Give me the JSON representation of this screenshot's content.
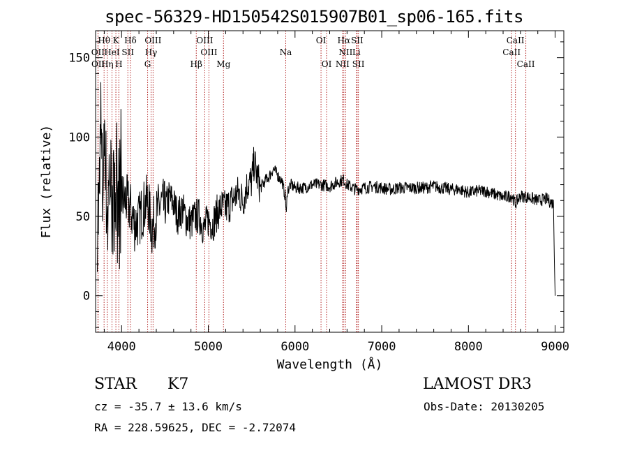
{
  "header": {
    "title": "spec-56329-HD150542S015907B01_sp06-165.fits"
  },
  "info": {
    "object_class": "STAR",
    "subclass": "K7",
    "survey": "LAMOST DR3",
    "cz_line": "cz = -35.7 ± 13.6 km/s",
    "obs_date_line": "Obs-Date: 20130205",
    "radec_line": "RA = 228.59625, DEC =  -2.72074"
  },
  "colors": {
    "spectrum": "#000000",
    "line_markers": "#b22222",
    "axes": "#000000",
    "background": "#ffffff"
  },
  "chart_data": {
    "type": "line",
    "title": "spec-56329-HD150542S015907B01_sp06-165.fits",
    "xlabel": "Wavelength (Å)",
    "ylabel": "Flux (relative)",
    "xlim": [
      3700,
      9100
    ],
    "ylim": [
      -23,
      167
    ],
    "xticks": [
      4000,
      5000,
      6000,
      7000,
      8000,
      9000
    ],
    "xtick_labels": [
      "4000",
      "5000",
      "6000",
      "7000",
      "8000",
      "9000"
    ],
    "yticks": [
      0,
      50,
      100,
      150
    ],
    "ytick_labels": [
      "0",
      "50",
      "100",
      "150"
    ],
    "spectrum_range": [
      3720,
      9000
    ],
    "series": [
      {
        "name": "flux",
        "x": [
          3720,
          3740,
          3760,
          3780,
          3800,
          3820,
          3840,
          3860,
          3880,
          3900,
          3920,
          3940,
          3960,
          3980,
          4000,
          4050,
          4100,
          4150,
          4200,
          4250,
          4300,
          4350,
          4400,
          4450,
          4500,
          4550,
          4600,
          4650,
          4700,
          4750,
          4800,
          4850,
          4900,
          4950,
          5000,
          5050,
          5100,
          5150,
          5200,
          5250,
          5300,
          5350,
          5400,
          5450,
          5500,
          5530,
          5550,
          5600,
          5650,
          5700,
          5750,
          5800,
          5850,
          5890,
          5900,
          5910,
          5950,
          6000,
          6100,
          6200,
          6300,
          6400,
          6500,
          6563,
          6600,
          6700,
          6800,
          6900,
          7000,
          7100,
          7200,
          7300,
          7400,
          7500,
          7600,
          7700,
          7800,
          7900,
          8000,
          8100,
          8200,
          8300,
          8400,
          8500,
          8542,
          8600,
          8700,
          8800,
          8900,
          8980,
          9000
        ],
        "y": [
          55,
          50,
          110,
          60,
          115,
          70,
          50,
          80,
          65,
          55,
          70,
          60,
          58,
          65,
          62,
          60,
          55,
          45,
          48,
          55,
          60,
          42,
          50,
          58,
          55,
          62,
          58,
          50,
          55,
          48,
          46,
          50,
          50,
          42,
          48,
          45,
          52,
          56,
          55,
          58,
          62,
          65,
          60,
          70,
          72,
          85,
          78,
          68,
          72,
          75,
          80,
          76,
          72,
          62,
          50,
          66,
          70,
          68,
          68,
          70,
          70,
          69,
          72,
          73,
          70,
          67,
          68,
          69,
          68,
          67,
          68,
          68,
          68,
          68,
          69,
          68,
          67,
          67,
          65,
          66,
          66,
          64,
          62,
          63,
          58,
          63,
          62,
          60,
          61,
          58,
          0
        ]
      }
    ],
    "line_markers": [
      {
        "label": "Hθ",
        "wavelength": 3798,
        "row": 0
      },
      {
        "label": "K",
        "wavelength": 3934,
        "row": 0
      },
      {
        "label": "Hδ",
        "wavelength": 4102,
        "row": 0
      },
      {
        "label": "OIII",
        "wavelength": 4363,
        "row": 0
      },
      {
        "label": "OIII",
        "wavelength": 4959,
        "row": 0
      },
      {
        "label": "OI",
        "wavelength": 6300,
        "row": 0
      },
      {
        "label": "Hα",
        "wavelength": 6563,
        "row": 0
      },
      {
        "label": "SII",
        "wavelength": 6717,
        "row": 0
      },
      {
        "label": "CaII",
        "wavelength": 8542,
        "row": 0
      },
      {
        "label": "OII",
        "wavelength": 3727,
        "row": 1
      },
      {
        "label": "HeI",
        "wavelength": 3889,
        "row": 1
      },
      {
        "label": "SII",
        "wavelength": 4072,
        "row": 1
      },
      {
        "label": "Hγ",
        "wavelength": 4340,
        "row": 1
      },
      {
        "label": "OIII",
        "wavelength": 5007,
        "row": 1
      },
      {
        "label": "Na",
        "wavelength": 5893,
        "row": 1
      },
      {
        "label": "NII",
        "wavelength": 6584,
        "row": 1
      },
      {
        "label": "Li",
        "wavelength": 6708,
        "row": 1
      },
      {
        "label": "CaII",
        "wavelength": 8498,
        "row": 1
      },
      {
        "label": "OII",
        "wavelength": 3729,
        "row": 2
      },
      {
        "label": "Hη",
        "wavelength": 3835,
        "row": 2
      },
      {
        "label": "H",
        "wavelength": 3968,
        "row": 2
      },
      {
        "label": "G",
        "wavelength": 4300,
        "row": 2
      },
      {
        "label": "Hβ",
        "wavelength": 4861,
        "row": 2
      },
      {
        "label": "Mg",
        "wavelength": 5175,
        "row": 2
      },
      {
        "label": "OI",
        "wavelength": 6364,
        "row": 2
      },
      {
        "label": "NII",
        "wavelength": 6548,
        "row": 2
      },
      {
        "label": "SII",
        "wavelength": 6731,
        "row": 2
      },
      {
        "label": "CaII",
        "wavelength": 8662,
        "row": 2
      }
    ]
  }
}
